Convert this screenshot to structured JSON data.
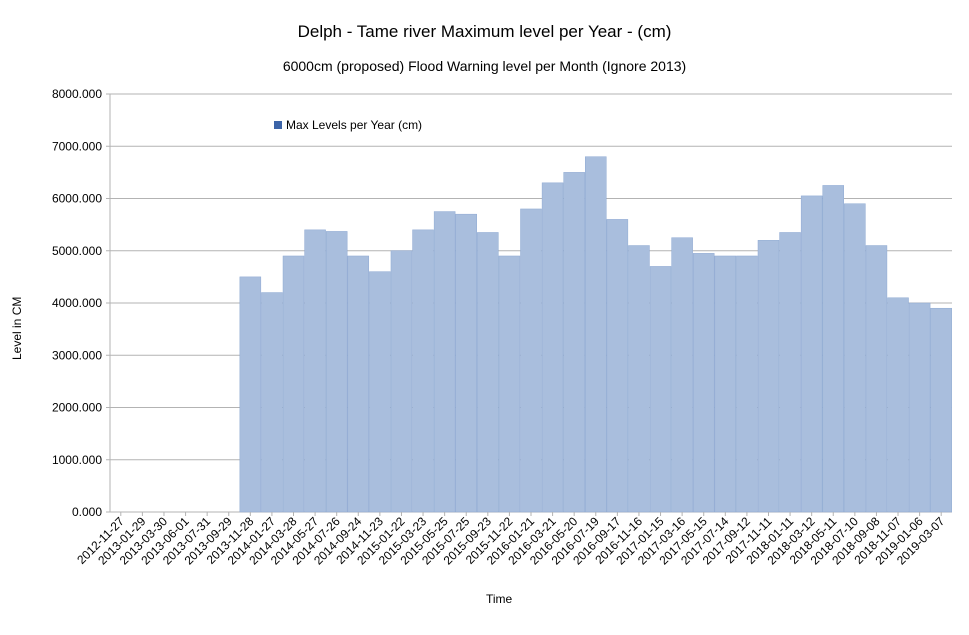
{
  "chart_data": {
    "type": "bar",
    "title": "Delph - Tame river Maximum level per Year - (cm)",
    "subtitle": "6000cm  (proposed) Flood Warning level per Month (Ignore 2013)",
    "xlabel": "Time",
    "ylabel": "Level in CM",
    "ylim": [
      0,
      8000
    ],
    "yticks": [
      "0.000",
      "1000.000",
      "2000.000",
      "3000.000",
      "4000.000",
      "5000.000",
      "6000.000",
      "7000.000",
      "8000.000"
    ],
    "grid": true,
    "legend_position": "top-left",
    "series": [
      {
        "name": "Max Levels per Year (cm)",
        "color": "#3c64a8",
        "x": [
          "2012-11-27",
          "2013-01-29",
          "2013-03-30",
          "2013-06-01",
          "2013-07-31",
          "2013-09-29",
          "2013-11-28",
          "2014-01-27",
          "2014-03-28",
          "2014-05-27",
          "2014-07-26",
          "2014-09-24",
          "2014-11-23",
          "2015-01-22",
          "2015-03-23",
          "2015-05-25",
          "2015-07-25",
          "2015-09-23",
          "2015-11-22",
          "2016-01-21",
          "2016-03-21",
          "2016-05-20",
          "2016-07-19",
          "2016-09-17",
          "2016-11-16",
          "2017-01-15",
          "2017-03-16",
          "2017-05-15",
          "2017-07-14",
          "2017-09-12",
          "2017-11-11",
          "2018-01-11",
          "2018-03-12",
          "2018-05-11",
          "2018-07-10",
          "2018-09-08",
          "2018-11-07",
          "2019-01-06",
          "2019-03-07"
        ],
        "values": [
          0,
          0,
          0,
          0,
          0,
          0,
          4500,
          4200,
          4900,
          5400,
          5370,
          4900,
          4600,
          5000,
          5400,
          5750,
          5700,
          5350,
          4900,
          5800,
          6300,
          6500,
          6800,
          5600,
          5100,
          4700,
          5250,
          4950,
          4900,
          4900,
          5200,
          5350,
          6050,
          6250,
          5900,
          5100,
          4100,
          4000,
          3900
        ]
      }
    ]
  }
}
